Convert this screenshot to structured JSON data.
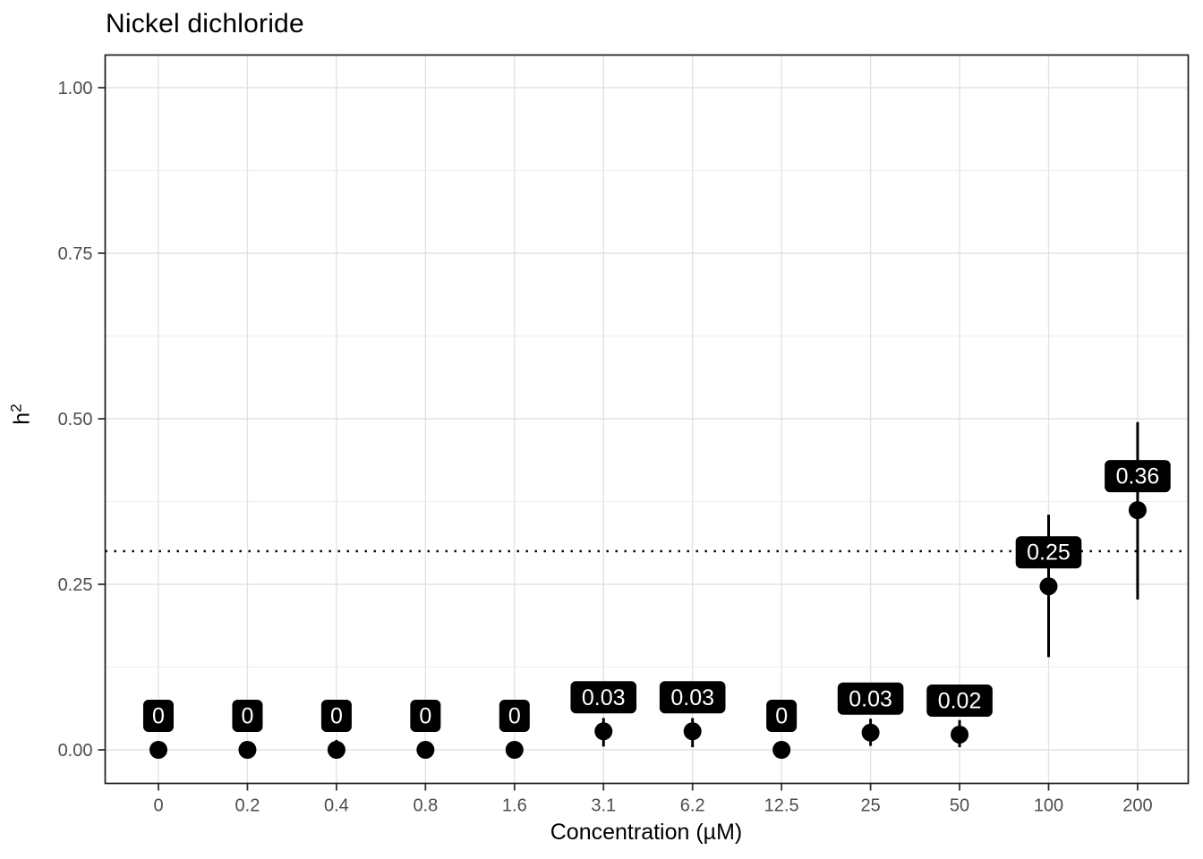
{
  "chart_data": {
    "type": "pointrange",
    "title": "Nickel dichloride",
    "xlabel": "Concentration (µM)",
    "ylabel": "h^2",
    "ylabel_base": "h",
    "ylabel_sup": "2",
    "categories": [
      "0",
      "0.2",
      "0.4",
      "0.8",
      "1.6",
      "3.1",
      "6.2",
      "12.5",
      "25",
      "50",
      "100",
      "200"
    ],
    "points": [
      {
        "x": "0",
        "value": 0,
        "label": "0",
        "ci_low": 0,
        "ci_high": 0.01
      },
      {
        "x": "0.2",
        "value": 0,
        "label": "0",
        "ci_low": 0,
        "ci_high": 0.01
      },
      {
        "x": "0.4",
        "value": 0,
        "label": "0",
        "ci_low": 0,
        "ci_high": 0.015
      },
      {
        "x": "0.8",
        "value": 0,
        "label": "0",
        "ci_low": 0,
        "ci_high": 0.01
      },
      {
        "x": "1.6",
        "value": 0,
        "label": "0",
        "ci_low": 0,
        "ci_high": 0.01
      },
      {
        "x": "3.1",
        "value": 0.028,
        "label": "0.03",
        "ci_low": 0.005,
        "ci_high": 0.048
      },
      {
        "x": "6.2",
        "value": 0.028,
        "label": "0.03",
        "ci_low": 0.004,
        "ci_high": 0.048
      },
      {
        "x": "12.5",
        "value": 0,
        "label": "0",
        "ci_low": 0,
        "ci_high": 0.01
      },
      {
        "x": "25",
        "value": 0.026,
        "label": "0.03",
        "ci_low": 0.006,
        "ci_high": 0.047
      },
      {
        "x": "50",
        "value": 0.023,
        "label": "0.02",
        "ci_low": 0.004,
        "ci_high": 0.045
      },
      {
        "x": "100",
        "value": 0.247,
        "label": "0.25",
        "ci_low": 0.14,
        "ci_high": 0.355
      },
      {
        "x": "200",
        "value": 0.362,
        "label": "0.36",
        "ci_low": 0.227,
        "ci_high": 0.495
      }
    ],
    "hline": {
      "y": 0.3,
      "style": "dotted",
      "color": "#000000"
    },
    "y_axis": {
      "range": [
        0,
        1
      ],
      "tick_values": [
        0,
        0.25,
        0.5,
        0.75,
        1
      ],
      "tick_labels": [
        "0.00",
        "0.25",
        "0.50",
        "0.75",
        "1.00"
      ],
      "minor_tick_values": [
        0.125,
        0.375,
        0.625,
        0.875
      ]
    },
    "x_axis": {
      "tick_labels": [
        "0",
        "0.2",
        "0.4",
        "0.8",
        "1.6",
        "3.1",
        "6.2",
        "12.5",
        "25",
        "50",
        "100",
        "200"
      ]
    },
    "legend": null,
    "grid": "on",
    "colors": {
      "point": "#000000",
      "errorbar": "#000000",
      "label_bg": "#000000",
      "label_text": "#ffffff",
      "grid_major": "#e3e3e3",
      "grid_minor": "#ededed",
      "panel_border": "#1a1a1a",
      "tick_mark": "#333333",
      "tick_text": "#4d4d4d",
      "title_text": "#000000"
    }
  }
}
